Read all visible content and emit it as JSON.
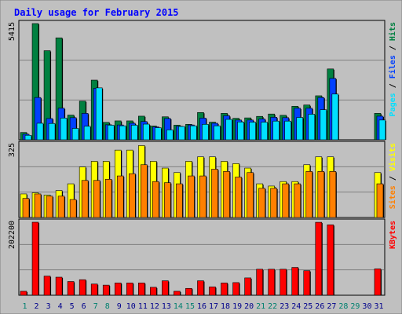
{
  "chart_data": {
    "type": "bar",
    "title": "Daily usage for February 2015",
    "categories": [
      "1",
      "2",
      "3",
      "4",
      "5",
      "6",
      "7",
      "8",
      "9",
      "10",
      "11",
      "12",
      "13",
      "14",
      "15",
      "16",
      "17",
      "18",
      "19",
      "20",
      "21",
      "22",
      "23",
      "24",
      "25",
      "26",
      "27",
      "28",
      "29",
      "30",
      "31"
    ],
    "weekend_days": [
      "1",
      "7",
      "8",
      "14",
      "15",
      "21",
      "22",
      "28",
      "29"
    ],
    "panels": [
      {
        "id": "pages",
        "ylim": [
          0,
          5415
        ],
        "max_label": "5415",
        "legend": [
          "Pages",
          "Files",
          "Hits"
        ],
        "series": [
          {
            "name": "Hits",
            "color": "#008040",
            "values": [
              340,
              5415,
              4150,
              4750,
              1150,
              1800,
              2780,
              810,
              880,
              880,
              1100,
              640,
              1070,
              680,
              720,
              1270,
              820,
              1230,
              1000,
              1020,
              1090,
              1200,
              1140,
              1560,
              1620,
              2050,
              3300,
              0,
              0,
              0,
              1230
            ]
          },
          {
            "name": "Files",
            "color": "#0040ff",
            "values": [
              260,
              1970,
              990,
              1470,
              1030,
              1230,
              2400,
              700,
              690,
              770,
              850,
              600,
              990,
              630,
              690,
              1010,
              770,
              1120,
              920,
              920,
              970,
              1050,
              1030,
              1470,
              1470,
              1970,
              2860,
              0,
              0,
              0,
              1100
            ]
          },
          {
            "name": "Pages",
            "color": "#00e0ff",
            "values": [
              210,
              770,
              760,
              1010,
              530,
              630,
              2420,
              680,
              650,
              680,
              730,
              560,
              460,
              620,
              650,
              720,
              650,
              950,
              830,
              820,
              820,
              870,
              870,
              1040,
              1190,
              1400,
              2130,
              0,
              0,
              0,
              920
            ]
          }
        ]
      },
      {
        "id": "visits",
        "ylim": [
          0,
          325
        ],
        "max_label": "325",
        "legend": [
          "Sites",
          "Visits"
        ],
        "series": [
          {
            "name": "Visits",
            "color": "#ffff00",
            "values": [
              105,
              110,
              100,
              120,
              150,
              225,
              250,
              250,
              300,
              300,
              320,
              250,
              220,
              200,
              250,
              270,
              270,
              250,
              240,
              220,
              150,
              140,
              160,
              160,
              235,
              270,
              270,
              0,
              0,
              0,
              200
            ]
          },
          {
            "name": "Sites",
            "color": "#ff8000",
            "values": [
              85,
              105,
              95,
              95,
              80,
              165,
              165,
              170,
              185,
              195,
              235,
              160,
              155,
              150,
              185,
              185,
              215,
              205,
              180,
              200,
              130,
              130,
              150,
              150,
              205,
              205,
              205,
              0,
              0,
              0,
              150
            ]
          }
        ]
      },
      {
        "id": "kbytes",
        "ylim": [
          0,
          202200
        ],
        "max_label": "202200",
        "legend": [
          "KBytes"
        ],
        "series": [
          {
            "name": "KBytes",
            "color": "#ff0000",
            "values": [
              11000,
              202200,
              53000,
              50000,
              38000,
              43000,
              31000,
              28000,
              34000,
              34000,
              34000,
              22000,
              40000,
              11000,
              19000,
              40000,
              23000,
              34000,
              35000,
              48000,
              72000,
              72000,
              72000,
              77000,
              68000,
              202000,
              195000,
              0,
              0,
              0,
              73000
            ]
          }
        ]
      }
    ]
  },
  "colors": {
    "background": "#c0c0c0",
    "plot_bg": "#c0c0c0",
    "title": "#0000ff",
    "weekday_label": "#00008b",
    "weekend_label": "#00806f",
    "separator": "#808080"
  }
}
